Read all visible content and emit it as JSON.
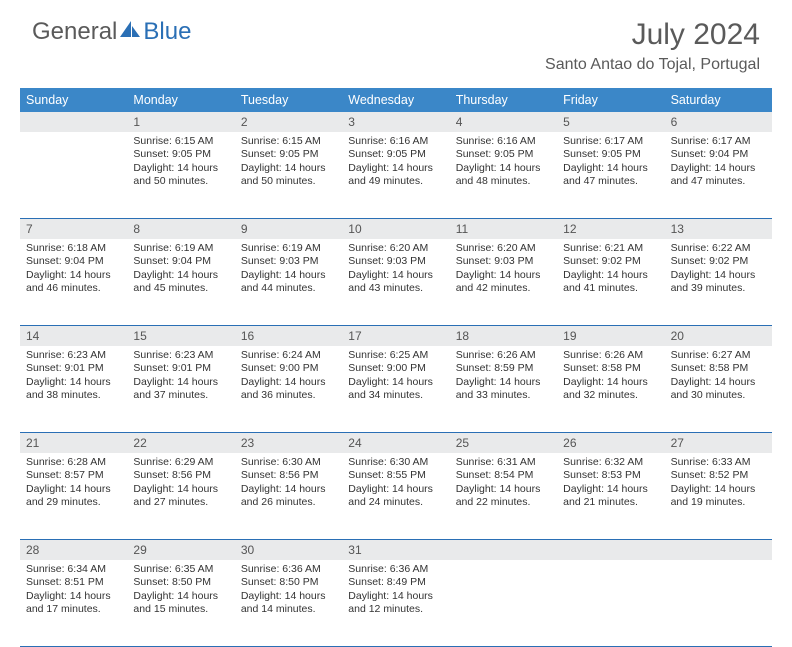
{
  "brand": {
    "part1": "General",
    "part2": "Blue"
  },
  "title": "July 2024",
  "location": "Santo Antao do Tojal, Portugal",
  "styling": {
    "header_bg": "#3b87c8",
    "header_text": "#ffffff",
    "daynum_bg": "#e9eaeb",
    "border_color": "#2a6fb5",
    "title_color": "#5a5a5a",
    "body_text": "#333333",
    "title_fontsize": 30,
    "location_fontsize": 16,
    "weekday_fontsize": 12.5,
    "daynum_fontsize": 12,
    "cell_fontsize": 10.5
  },
  "weekdays": [
    "Sunday",
    "Monday",
    "Tuesday",
    "Wednesday",
    "Thursday",
    "Friday",
    "Saturday"
  ],
  "weeks": [
    [
      {
        "n": "",
        "sr": "",
        "ss": "",
        "d1": "",
        "d2": ""
      },
      {
        "n": "1",
        "sr": "Sunrise: 6:15 AM",
        "ss": "Sunset: 9:05 PM",
        "d1": "Daylight: 14 hours",
        "d2": "and 50 minutes."
      },
      {
        "n": "2",
        "sr": "Sunrise: 6:15 AM",
        "ss": "Sunset: 9:05 PM",
        "d1": "Daylight: 14 hours",
        "d2": "and 50 minutes."
      },
      {
        "n": "3",
        "sr": "Sunrise: 6:16 AM",
        "ss": "Sunset: 9:05 PM",
        "d1": "Daylight: 14 hours",
        "d2": "and 49 minutes."
      },
      {
        "n": "4",
        "sr": "Sunrise: 6:16 AM",
        "ss": "Sunset: 9:05 PM",
        "d1": "Daylight: 14 hours",
        "d2": "and 48 minutes."
      },
      {
        "n": "5",
        "sr": "Sunrise: 6:17 AM",
        "ss": "Sunset: 9:05 PM",
        "d1": "Daylight: 14 hours",
        "d2": "and 47 minutes."
      },
      {
        "n": "6",
        "sr": "Sunrise: 6:17 AM",
        "ss": "Sunset: 9:04 PM",
        "d1": "Daylight: 14 hours",
        "d2": "and 47 minutes."
      }
    ],
    [
      {
        "n": "7",
        "sr": "Sunrise: 6:18 AM",
        "ss": "Sunset: 9:04 PM",
        "d1": "Daylight: 14 hours",
        "d2": "and 46 minutes."
      },
      {
        "n": "8",
        "sr": "Sunrise: 6:19 AM",
        "ss": "Sunset: 9:04 PM",
        "d1": "Daylight: 14 hours",
        "d2": "and 45 minutes."
      },
      {
        "n": "9",
        "sr": "Sunrise: 6:19 AM",
        "ss": "Sunset: 9:03 PM",
        "d1": "Daylight: 14 hours",
        "d2": "and 44 minutes."
      },
      {
        "n": "10",
        "sr": "Sunrise: 6:20 AM",
        "ss": "Sunset: 9:03 PM",
        "d1": "Daylight: 14 hours",
        "d2": "and 43 minutes."
      },
      {
        "n": "11",
        "sr": "Sunrise: 6:20 AM",
        "ss": "Sunset: 9:03 PM",
        "d1": "Daylight: 14 hours",
        "d2": "and 42 minutes."
      },
      {
        "n": "12",
        "sr": "Sunrise: 6:21 AM",
        "ss": "Sunset: 9:02 PM",
        "d1": "Daylight: 14 hours",
        "d2": "and 41 minutes."
      },
      {
        "n": "13",
        "sr": "Sunrise: 6:22 AM",
        "ss": "Sunset: 9:02 PM",
        "d1": "Daylight: 14 hours",
        "d2": "and 39 minutes."
      }
    ],
    [
      {
        "n": "14",
        "sr": "Sunrise: 6:23 AM",
        "ss": "Sunset: 9:01 PM",
        "d1": "Daylight: 14 hours",
        "d2": "and 38 minutes."
      },
      {
        "n": "15",
        "sr": "Sunrise: 6:23 AM",
        "ss": "Sunset: 9:01 PM",
        "d1": "Daylight: 14 hours",
        "d2": "and 37 minutes."
      },
      {
        "n": "16",
        "sr": "Sunrise: 6:24 AM",
        "ss": "Sunset: 9:00 PM",
        "d1": "Daylight: 14 hours",
        "d2": "and 36 minutes."
      },
      {
        "n": "17",
        "sr": "Sunrise: 6:25 AM",
        "ss": "Sunset: 9:00 PM",
        "d1": "Daylight: 14 hours",
        "d2": "and 34 minutes."
      },
      {
        "n": "18",
        "sr": "Sunrise: 6:26 AM",
        "ss": "Sunset: 8:59 PM",
        "d1": "Daylight: 14 hours",
        "d2": "and 33 minutes."
      },
      {
        "n": "19",
        "sr": "Sunrise: 6:26 AM",
        "ss": "Sunset: 8:58 PM",
        "d1": "Daylight: 14 hours",
        "d2": "and 32 minutes."
      },
      {
        "n": "20",
        "sr": "Sunrise: 6:27 AM",
        "ss": "Sunset: 8:58 PM",
        "d1": "Daylight: 14 hours",
        "d2": "and 30 minutes."
      }
    ],
    [
      {
        "n": "21",
        "sr": "Sunrise: 6:28 AM",
        "ss": "Sunset: 8:57 PM",
        "d1": "Daylight: 14 hours",
        "d2": "and 29 minutes."
      },
      {
        "n": "22",
        "sr": "Sunrise: 6:29 AM",
        "ss": "Sunset: 8:56 PM",
        "d1": "Daylight: 14 hours",
        "d2": "and 27 minutes."
      },
      {
        "n": "23",
        "sr": "Sunrise: 6:30 AM",
        "ss": "Sunset: 8:56 PM",
        "d1": "Daylight: 14 hours",
        "d2": "and 26 minutes."
      },
      {
        "n": "24",
        "sr": "Sunrise: 6:30 AM",
        "ss": "Sunset: 8:55 PM",
        "d1": "Daylight: 14 hours",
        "d2": "and 24 minutes."
      },
      {
        "n": "25",
        "sr": "Sunrise: 6:31 AM",
        "ss": "Sunset: 8:54 PM",
        "d1": "Daylight: 14 hours",
        "d2": "and 22 minutes."
      },
      {
        "n": "26",
        "sr": "Sunrise: 6:32 AM",
        "ss": "Sunset: 8:53 PM",
        "d1": "Daylight: 14 hours",
        "d2": "and 21 minutes."
      },
      {
        "n": "27",
        "sr": "Sunrise: 6:33 AM",
        "ss": "Sunset: 8:52 PM",
        "d1": "Daylight: 14 hours",
        "d2": "and 19 minutes."
      }
    ],
    [
      {
        "n": "28",
        "sr": "Sunrise: 6:34 AM",
        "ss": "Sunset: 8:51 PM",
        "d1": "Daylight: 14 hours",
        "d2": "and 17 minutes."
      },
      {
        "n": "29",
        "sr": "Sunrise: 6:35 AM",
        "ss": "Sunset: 8:50 PM",
        "d1": "Daylight: 14 hours",
        "d2": "and 15 minutes."
      },
      {
        "n": "30",
        "sr": "Sunrise: 6:36 AM",
        "ss": "Sunset: 8:50 PM",
        "d1": "Daylight: 14 hours",
        "d2": "and 14 minutes."
      },
      {
        "n": "31",
        "sr": "Sunrise: 6:36 AM",
        "ss": "Sunset: 8:49 PM",
        "d1": "Daylight: 14 hours",
        "d2": "and 12 minutes."
      },
      {
        "n": "",
        "sr": "",
        "ss": "",
        "d1": "",
        "d2": ""
      },
      {
        "n": "",
        "sr": "",
        "ss": "",
        "d1": "",
        "d2": ""
      },
      {
        "n": "",
        "sr": "",
        "ss": "",
        "d1": "",
        "d2": ""
      }
    ]
  ]
}
